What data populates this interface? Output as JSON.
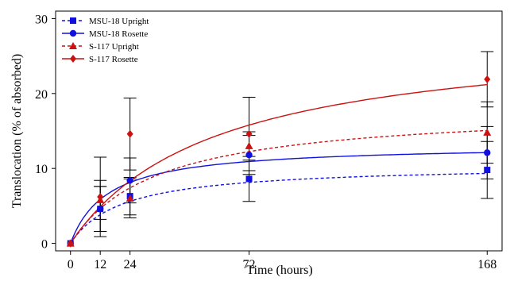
{
  "chart_data": {
    "type": "scatter",
    "xlabel": "Time (hours)",
    "ylabel": "Translocation (% of absorbed)",
    "x_ticks": [
      0,
      12,
      24,
      72,
      168
    ],
    "y_ticks": [
      0,
      10,
      20,
      30
    ],
    "xlim": [
      -6,
      174
    ],
    "ylim": [
      -1,
      31
    ],
    "grid": false,
    "legend_position": "top-left",
    "series": [
      {
        "name": "MSU-18 Upright",
        "color": "#1010e0",
        "marker": "square",
        "line": "dashed",
        "x": [
          0,
          12,
          24,
          72,
          168
        ],
        "y": [
          0,
          4.6,
          6.3,
          8.6,
          9.8
        ],
        "error": [
          0,
          3.0,
          2.5,
          3.0,
          3.8
        ],
        "fit": {
          "a": 10.5,
          "b": 21
        }
      },
      {
        "name": "MSU-18 Rosette",
        "color": "#1010e0",
        "marker": "circle",
        "line": "solid",
        "x": [
          0,
          12,
          24,
          72,
          168
        ],
        "y": [
          0,
          4.6,
          8.4,
          11.8,
          12.1
        ],
        "error": [
          0,
          3.0,
          3.0,
          2.6,
          3.5
        ],
        "fit": {
          "a": 13.2,
          "b": 15
        }
      },
      {
        "name": "S-117 Upright",
        "color": "#cc1111",
        "marker": "triangle",
        "line": "dashed",
        "x": [
          0,
          12,
          24,
          72,
          168
        ],
        "y": [
          0,
          5.8,
          6.0,
          13.0,
          14.8
        ],
        "error": [
          0,
          2.6,
          2.6,
          1.9,
          4.1
        ],
        "fit": {
          "a": 18.2,
          "b": 35
        }
      },
      {
        "name": "S-117 Rosette",
        "color": "#cc1111",
        "marker": "diamond",
        "line": "solid",
        "x": [
          0,
          12,
          24,
          72,
          168
        ],
        "y": [
          0,
          6.2,
          14.6,
          14.6,
          21.9
        ],
        "error": [
          0,
          5.3,
          4.8,
          4.9,
          3.7
        ],
        "fit": {
          "a": 28.5,
          "b": 58
        }
      }
    ]
  }
}
